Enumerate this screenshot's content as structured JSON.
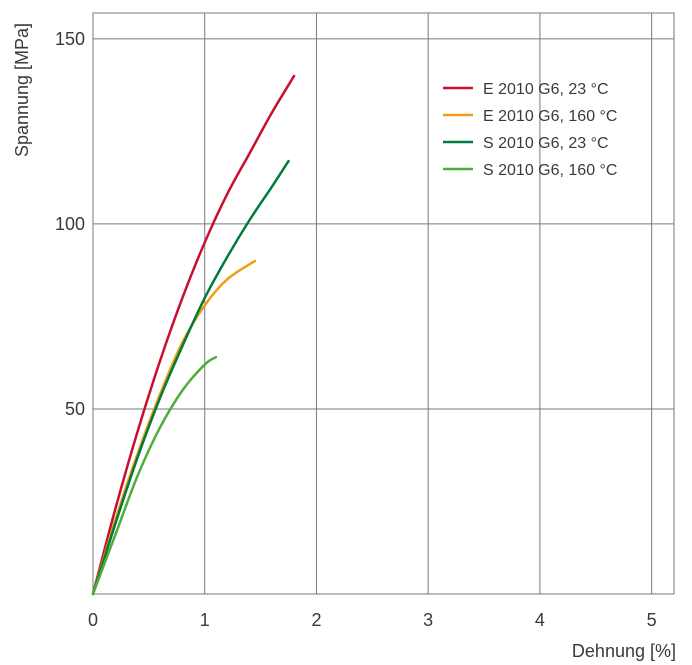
{
  "chart_data": {
    "type": "line",
    "title": "",
    "xlabel": "Dehnung [%]",
    "ylabel": "Spannung [MPa]",
    "xlim": [
      0,
      5.2
    ],
    "ylim": [
      0,
      157
    ],
    "x_ticks": [
      {
        "value": 0,
        "label": "0"
      },
      {
        "value": 1,
        "label": "1"
      },
      {
        "value": 2,
        "label": "2"
      },
      {
        "value": 3,
        "label": "3"
      },
      {
        "value": 4,
        "label": "4"
      },
      {
        "value": 5,
        "label": "5"
      }
    ],
    "y_ticks": [
      {
        "value": 50,
        "label": "50"
      },
      {
        "value": 100,
        "label": "100"
      },
      {
        "value": 150,
        "label": "150"
      }
    ],
    "grid": true,
    "legend_position": "top-right",
    "series": [
      {
        "name": "E 2010 G6, 23 °C",
        "color": "#c8102e",
        "x": [
          0,
          0.2,
          0.4,
          0.6,
          0.8,
          1.0,
          1.2,
          1.4,
          1.6,
          1.8
        ],
        "y": [
          0,
          23,
          44,
          63,
          80,
          95,
          108,
          119,
          130,
          140
        ]
      },
      {
        "name": "E 2010 G6, 160 °C",
        "color": "#f39c12",
        "x": [
          0,
          0.2,
          0.4,
          0.6,
          0.8,
          1.0,
          1.2,
          1.45
        ],
        "y": [
          0,
          20,
          38,
          54,
          68,
          78,
          85,
          90
        ]
      },
      {
        "name": "S 2010 G6, 23 °C",
        "color": "#007a3d",
        "x": [
          0,
          0.2,
          0.4,
          0.6,
          0.8,
          1.0,
          1.2,
          1.4,
          1.6,
          1.75
        ],
        "y": [
          0,
          19,
          37,
          53,
          67,
          80,
          91,
          101,
          110,
          117
        ]
      },
      {
        "name": "S 2010 G6, 160 °C",
        "color": "#4caf3a",
        "x": [
          0,
          0.2,
          0.4,
          0.6,
          0.8,
          1.0,
          1.1
        ],
        "y": [
          0,
          16,
          32,
          45,
          55,
          62,
          64
        ]
      }
    ]
  }
}
